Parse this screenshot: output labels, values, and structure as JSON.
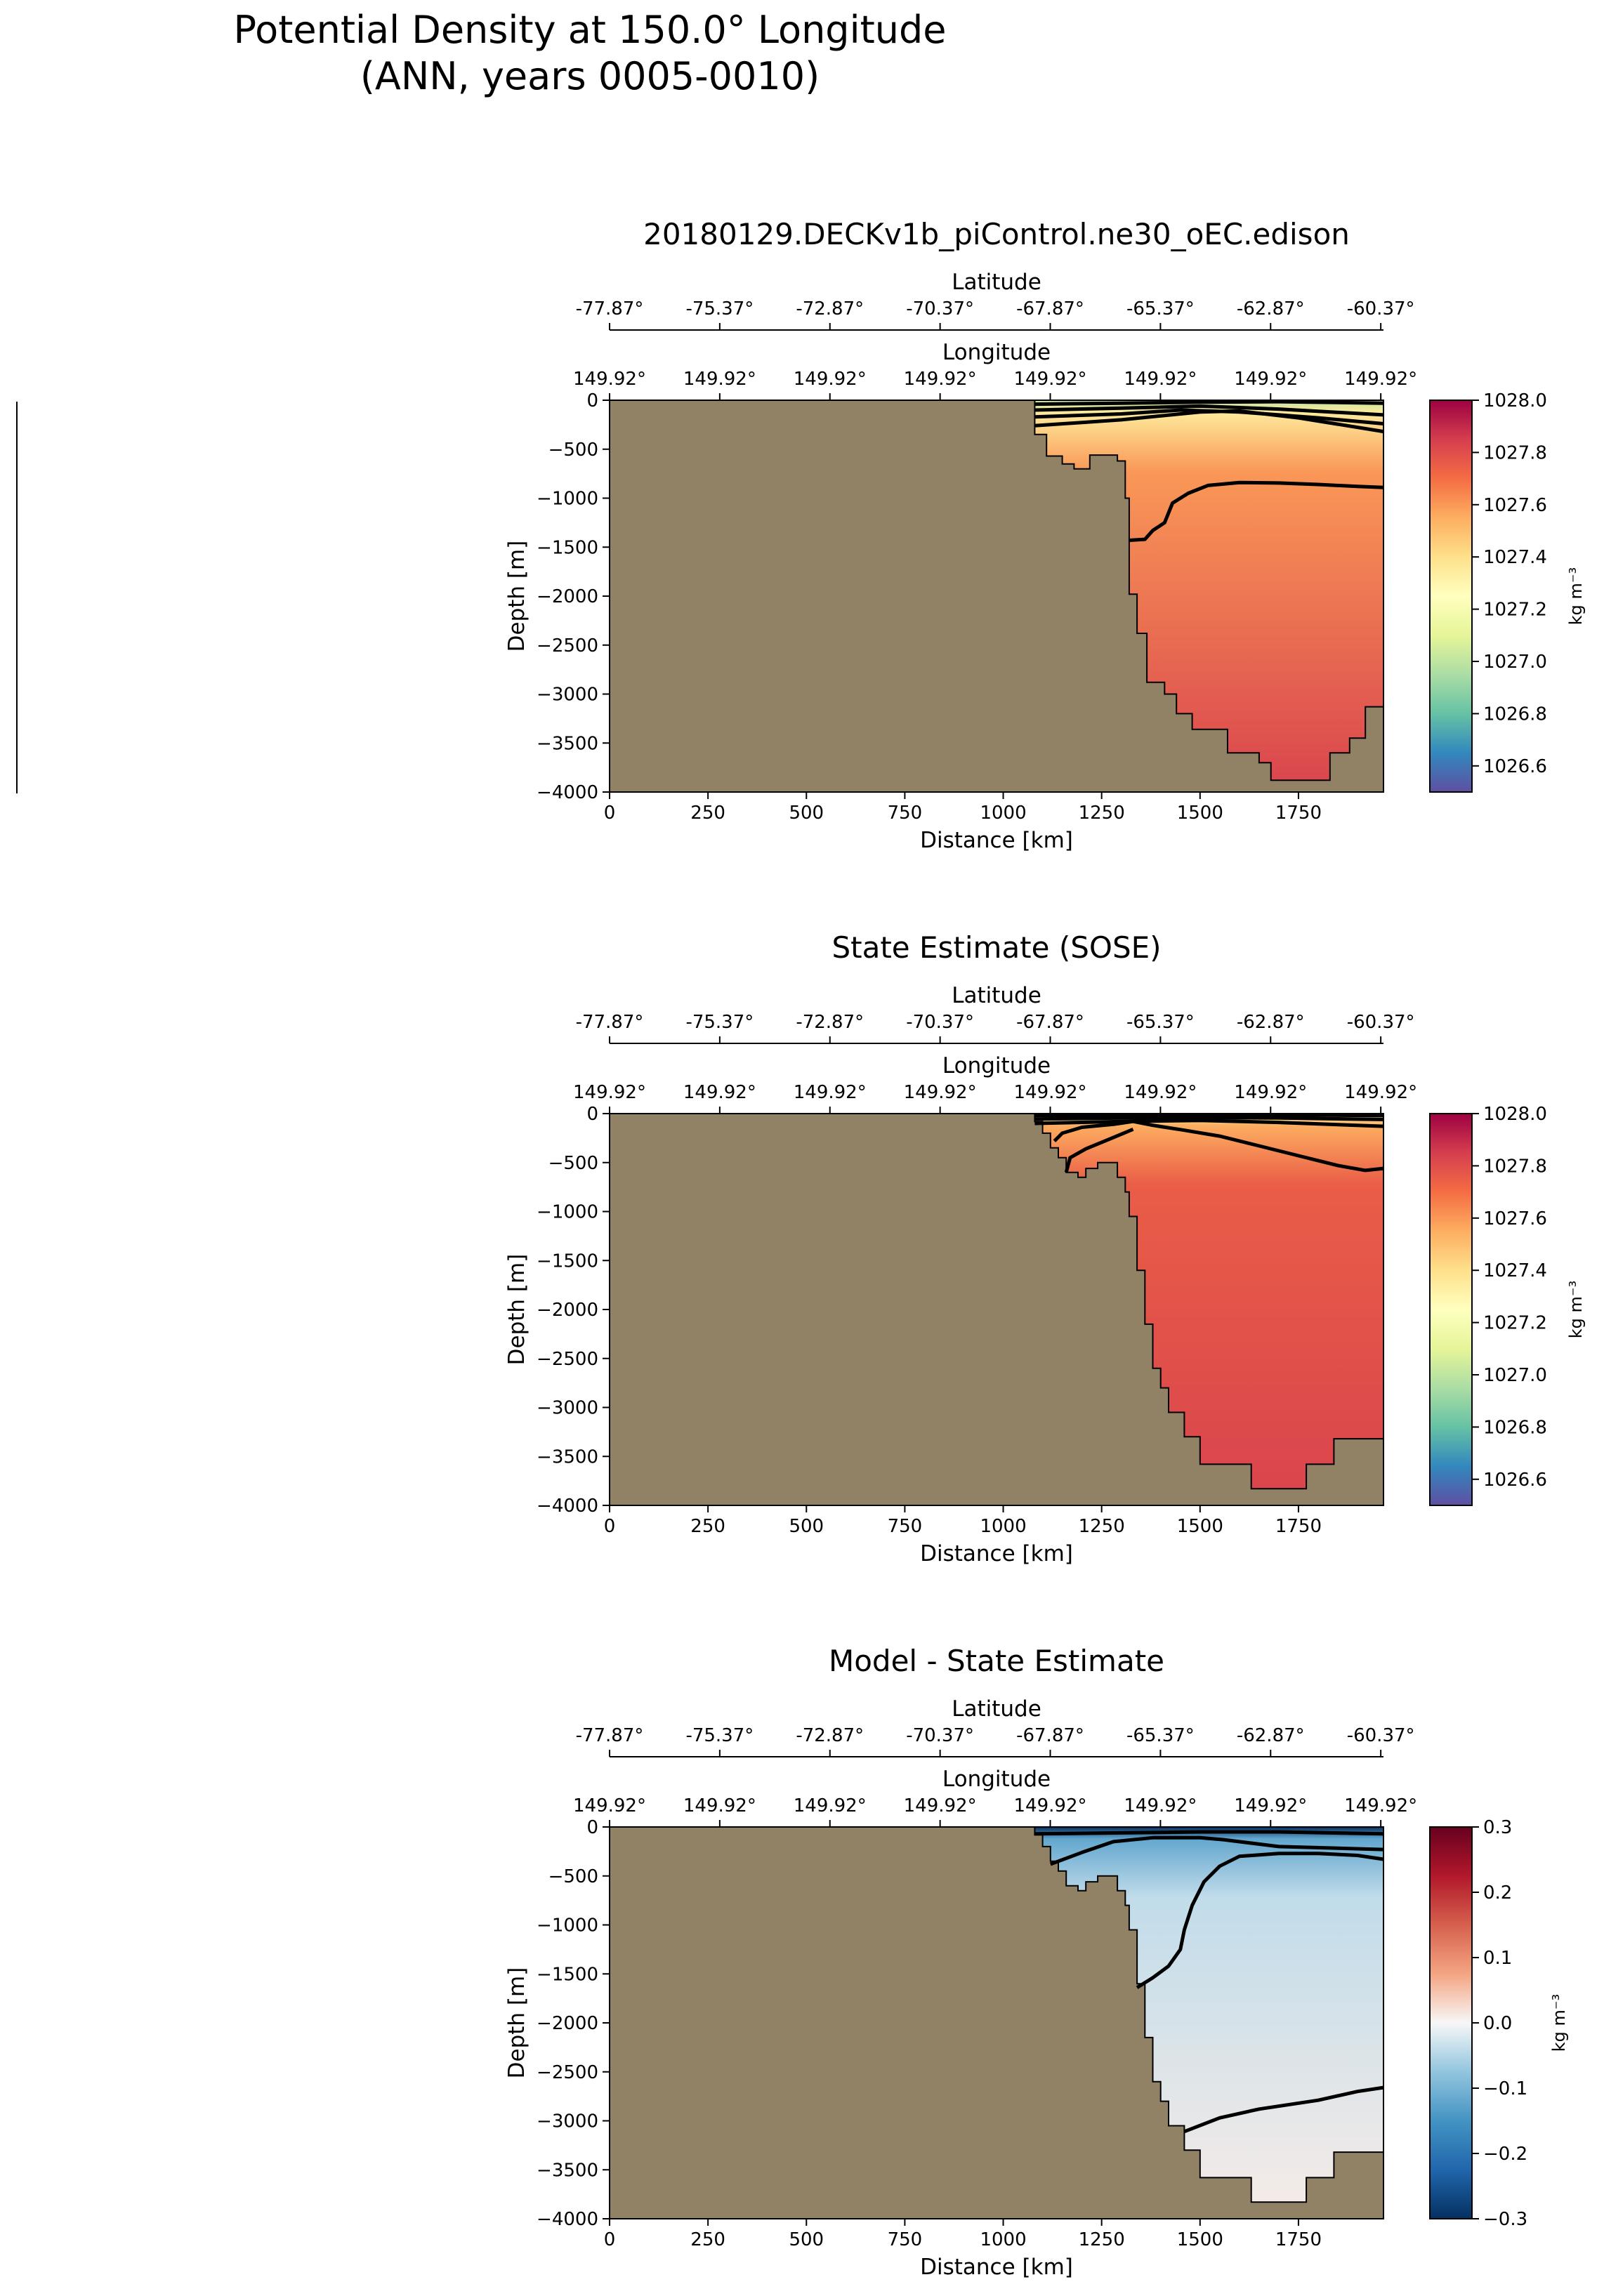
{
  "figure": {
    "suptitle_line1": "Potential Density at 150.0° Longitude",
    "suptitle_line2": "(ANN, years 0005-0010)"
  },
  "colors": {
    "land": "#918266",
    "contour": "#000000"
  },
  "chart_data": [
    {
      "type": "heatmap",
      "title": "20180129.DECKv1b_piControl.ne30_oEC.edison",
      "xlabel": "Distance [km]",
      "ylabel": "Depth [m]",
      "xlim": [
        0,
        1966
      ],
      "ylim": [
        -4000,
        0
      ],
      "xticks": [
        0,
        250,
        500,
        750,
        1000,
        1250,
        1500,
        1750
      ],
      "yticks": [
        0,
        -500,
        -1000,
        -1500,
        -2000,
        -2500,
        -3000,
        -3500,
        -4000
      ],
      "ytick_labels": [
        "0",
        "−500",
        "−1000",
        "−1500",
        "−2000",
        "−2500",
        "−3000",
        "−3500",
        "−4000"
      ],
      "lat_axis_label": "Latitude",
      "lat_ticks": [
        "-77.87°",
        "-75.37°",
        "-72.87°",
        "-70.37°",
        "-67.87°",
        "-65.37°",
        "-62.87°",
        "-60.37°"
      ],
      "lon_axis_label": "Longitude",
      "lon_ticks": [
        "149.92°",
        "149.92°",
        "149.92°",
        "149.92°",
        "149.92°",
        "149.92°",
        "149.92°",
        "149.92°"
      ],
      "colorbar": {
        "label": "kg m⁻³",
        "vmin": 1026.5,
        "vmax": 1028.0,
        "ticks": [
          1026.6,
          1026.8,
          1027.0,
          1027.2,
          1027.4,
          1027.6,
          1027.8,
          1028.0
        ],
        "tick_labels": [
          "1026.6",
          "1026.8",
          "1027.0",
          "1027.2",
          "1027.4",
          "1027.6",
          "1027.8",
          "1028.0"
        ],
        "cmap": "Spectral_r"
      },
      "field": {
        "surface_value": 1027.0,
        "shallow_value": 1027.35,
        "mid_value": 1027.6,
        "deep_value": 1027.83
      },
      "bathymetry": [
        [
          1080,
          0
        ],
        [
          1080,
          -350
        ],
        [
          1110,
          -350
        ],
        [
          1110,
          -570
        ],
        [
          1150,
          -570
        ],
        [
          1150,
          -650
        ],
        [
          1180,
          -650
        ],
        [
          1180,
          -700
        ],
        [
          1220,
          -700
        ],
        [
          1220,
          -560
        ],
        [
          1290,
          -560
        ],
        [
          1290,
          -620
        ],
        [
          1310,
          -620
        ],
        [
          1310,
          -1000
        ],
        [
          1320,
          -1000
        ],
        [
          1320,
          -1980
        ],
        [
          1340,
          -1980
        ],
        [
          1340,
          -2380
        ],
        [
          1365,
          -2380
        ],
        [
          1365,
          -2880
        ],
        [
          1410,
          -2880
        ],
        [
          1410,
          -3000
        ],
        [
          1440,
          -3000
        ],
        [
          1440,
          -3200
        ],
        [
          1480,
          -3200
        ],
        [
          1480,
          -3360
        ],
        [
          1570,
          -3360
        ],
        [
          1570,
          -3600
        ],
        [
          1650,
          -3600
        ],
        [
          1650,
          -3700
        ],
        [
          1680,
          -3700
        ],
        [
          1680,
          -3880
        ],
        [
          1830,
          -3880
        ],
        [
          1830,
          -3600
        ],
        [
          1880,
          -3600
        ],
        [
          1880,
          -3450
        ],
        [
          1920,
          -3450
        ],
        [
          1920,
          -3130
        ],
        [
          1966,
          -3130
        ]
      ],
      "contours": [
        [
          [
            1080,
            -40
          ],
          [
            1300,
            -30
          ],
          [
            1500,
            -20
          ],
          [
            1700,
            -15
          ],
          [
            1966,
            -30
          ]
        ],
        [
          [
            1080,
            -100
          ],
          [
            1300,
            -80
          ],
          [
            1500,
            -60
          ],
          [
            1700,
            -90
          ],
          [
            1966,
            -150
          ]
        ],
        [
          [
            1080,
            -170
          ],
          [
            1300,
            -140
          ],
          [
            1450,
            -100
          ],
          [
            1600,
            -120
          ],
          [
            1800,
            -180
          ],
          [
            1966,
            -240
          ]
        ],
        [
          [
            1080,
            -260
          ],
          [
            1300,
            -200
          ],
          [
            1500,
            -120
          ],
          [
            1600,
            -110
          ],
          [
            1750,
            -180
          ],
          [
            1966,
            -320
          ]
        ],
        [
          [
            1320,
            -1430
          ],
          [
            1360,
            -1420
          ],
          [
            1380,
            -1330
          ],
          [
            1410,
            -1250
          ],
          [
            1430,
            -1050
          ],
          [
            1470,
            -950
          ],
          [
            1520,
            -870
          ],
          [
            1600,
            -840
          ],
          [
            1700,
            -845
          ],
          [
            1800,
            -860
          ],
          [
            1900,
            -880
          ],
          [
            1966,
            -890
          ]
        ]
      ]
    },
    {
      "type": "heatmap",
      "title": "State Estimate (SOSE)",
      "xlabel": "Distance [km]",
      "ylabel": "Depth [m]",
      "xlim": [
        0,
        1966
      ],
      "ylim": [
        -4000,
        0
      ],
      "xticks": [
        0,
        250,
        500,
        750,
        1000,
        1250,
        1500,
        1750
      ],
      "yticks": [
        0,
        -500,
        -1000,
        -1500,
        -2000,
        -2500,
        -3000,
        -3500,
        -4000
      ],
      "ytick_labels": [
        "0",
        "−500",
        "−1000",
        "−1500",
        "−2000",
        "−2500",
        "−3000",
        "−3500",
        "−4000"
      ],
      "lat_axis_label": "Latitude",
      "lat_ticks": [
        "-77.87°",
        "-75.37°",
        "-72.87°",
        "-70.37°",
        "-67.87°",
        "-65.37°",
        "-62.87°",
        "-60.37°"
      ],
      "lon_axis_label": "Longitude",
      "lon_ticks": [
        "149.92°",
        "149.92°",
        "149.92°",
        "149.92°",
        "149.92°",
        "149.92°",
        "149.92°",
        "149.92°"
      ],
      "colorbar": {
        "label": "kg m⁻³",
        "vmin": 1026.5,
        "vmax": 1028.0,
        "ticks": [
          1026.6,
          1026.8,
          1027.0,
          1027.2,
          1027.4,
          1027.6,
          1027.8,
          1028.0
        ],
        "tick_labels": [
          "1026.6",
          "1026.8",
          "1027.0",
          "1027.2",
          "1027.4",
          "1027.6",
          "1027.8",
          "1028.0"
        ],
        "cmap": "Spectral_r"
      },
      "field": {
        "surface_value": 1027.3,
        "shallow_value": 1027.55,
        "mid_value": 1027.75,
        "deep_value": 1027.83
      },
      "bathymetry": [
        [
          1080,
          0
        ],
        [
          1080,
          -80
        ],
        [
          1100,
          -80
        ],
        [
          1100,
          -200
        ],
        [
          1120,
          -200
        ],
        [
          1120,
          -350
        ],
        [
          1140,
          -350
        ],
        [
          1140,
          -450
        ],
        [
          1160,
          -450
        ],
        [
          1160,
          -600
        ],
        [
          1190,
          -600
        ],
        [
          1190,
          -650
        ],
        [
          1210,
          -650
        ],
        [
          1210,
          -560
        ],
        [
          1240,
          -560
        ],
        [
          1240,
          -500
        ],
        [
          1290,
          -500
        ],
        [
          1290,
          -650
        ],
        [
          1310,
          -650
        ],
        [
          1310,
          -800
        ],
        [
          1320,
          -800
        ],
        [
          1320,
          -1050
        ],
        [
          1340,
          -1050
        ],
        [
          1340,
          -1600
        ],
        [
          1360,
          -1600
        ],
        [
          1360,
          -2150
        ],
        [
          1380,
          -2150
        ],
        [
          1380,
          -2600
        ],
        [
          1400,
          -2600
        ],
        [
          1400,
          -2800
        ],
        [
          1420,
          -2800
        ],
        [
          1420,
          -3050
        ],
        [
          1460,
          -3050
        ],
        [
          1460,
          -3300
        ],
        [
          1500,
          -3300
        ],
        [
          1500,
          -3580
        ],
        [
          1630,
          -3580
        ],
        [
          1630,
          -3830
        ],
        [
          1770,
          -3830
        ],
        [
          1770,
          -3580
        ],
        [
          1840,
          -3580
        ],
        [
          1840,
          -3320
        ],
        [
          1966,
          -3320
        ]
      ],
      "contours": [
        [
          [
            1080,
            -20
          ],
          [
            1300,
            -15
          ],
          [
            1500,
            -12
          ],
          [
            1700,
            -12
          ],
          [
            1966,
            -20
          ]
        ],
        [
          [
            1080,
            -55
          ],
          [
            1300,
            -45
          ],
          [
            1500,
            -40
          ],
          [
            1700,
            -45
          ],
          [
            1966,
            -60
          ]
        ],
        [
          [
            1080,
            -100
          ],
          [
            1300,
            -80
          ],
          [
            1500,
            -70
          ],
          [
            1700,
            -90
          ],
          [
            1966,
            -130
          ]
        ],
        [
          [
            1130,
            -280
          ],
          [
            1150,
            -200
          ],
          [
            1200,
            -140
          ],
          [
            1280,
            -110
          ],
          [
            1330,
            -80
          ],
          [
            1380,
            -120
          ],
          [
            1460,
            -170
          ],
          [
            1550,
            -230
          ],
          [
            1650,
            -330
          ],
          [
            1750,
            -430
          ],
          [
            1850,
            -530
          ],
          [
            1920,
            -580
          ],
          [
            1966,
            -560
          ]
        ],
        [
          [
            1160,
            -600
          ],
          [
            1170,
            -450
          ],
          [
            1210,
            -360
          ],
          [
            1270,
            -260
          ],
          [
            1330,
            -160
          ]
        ]
      ]
    },
    {
      "type": "heatmap",
      "title": "Model - State Estimate",
      "xlabel": "Distance [km]",
      "ylabel": "Depth [m]",
      "xlim": [
        0,
        1966
      ],
      "ylim": [
        -4000,
        0
      ],
      "xticks": [
        0,
        250,
        500,
        750,
        1000,
        1250,
        1500,
        1750
      ],
      "yticks": [
        0,
        -500,
        -1000,
        -1500,
        -2000,
        -2500,
        -3000,
        -3500,
        -4000
      ],
      "ytick_labels": [
        "0",
        "−500",
        "−1000",
        "−1500",
        "−2000",
        "−2500",
        "−3000",
        "−3500",
        "−4000"
      ],
      "lat_axis_label": "Latitude",
      "lat_ticks": [
        "-77.87°",
        "-75.37°",
        "-72.87°",
        "-70.37°",
        "-67.87°",
        "-65.37°",
        "-62.87°",
        "-60.37°"
      ],
      "lon_axis_label": "Longitude",
      "lon_ticks": [
        "149.92°",
        "149.92°",
        "149.92°",
        "149.92°",
        "149.92°",
        "149.92°",
        "149.92°",
        "149.92°"
      ],
      "colorbar": {
        "label": "kg m⁻³",
        "vmin": -0.3,
        "vmax": 0.3,
        "ticks": [
          -0.3,
          -0.2,
          -0.1,
          0.0,
          0.1,
          0.2,
          0.3
        ],
        "tick_labels": [
          "−0.3",
          "−0.2",
          "−0.1",
          "0.0",
          "0.1",
          "0.2",
          "0.3"
        ],
        "cmap": "RdBu_r"
      },
      "field": {
        "surface_value": -0.3,
        "shallow_value": -0.12,
        "mid_value": -0.04,
        "deep_value": 0.01
      },
      "bathymetry": [
        [
          1080,
          0
        ],
        [
          1080,
          -80
        ],
        [
          1100,
          -80
        ],
        [
          1100,
          -200
        ],
        [
          1120,
          -200
        ],
        [
          1120,
          -350
        ],
        [
          1140,
          -350
        ],
        [
          1140,
          -450
        ],
        [
          1160,
          -450
        ],
        [
          1160,
          -600
        ],
        [
          1190,
          -600
        ],
        [
          1190,
          -650
        ],
        [
          1210,
          -650
        ],
        [
          1210,
          -560
        ],
        [
          1240,
          -560
        ],
        [
          1240,
          -500
        ],
        [
          1290,
          -500
        ],
        [
          1290,
          -650
        ],
        [
          1310,
          -650
        ],
        [
          1310,
          -800
        ],
        [
          1320,
          -800
        ],
        [
          1320,
          -1050
        ],
        [
          1340,
          -1050
        ],
        [
          1340,
          -1600
        ],
        [
          1360,
          -1600
        ],
        [
          1360,
          -2150
        ],
        [
          1380,
          -2150
        ],
        [
          1380,
          -2600
        ],
        [
          1400,
          -2600
        ],
        [
          1400,
          -2800
        ],
        [
          1420,
          -2800
        ],
        [
          1420,
          -3050
        ],
        [
          1460,
          -3050
        ],
        [
          1460,
          -3300
        ],
        [
          1500,
          -3300
        ],
        [
          1500,
          -3580
        ],
        [
          1630,
          -3580
        ],
        [
          1630,
          -3830
        ],
        [
          1770,
          -3830
        ],
        [
          1770,
          -3580
        ],
        [
          1840,
          -3580
        ],
        [
          1840,
          -3320
        ],
        [
          1966,
          -3320
        ]
      ],
      "contours": [
        [
          [
            1080,
            -70
          ],
          [
            1300,
            -60
          ],
          [
            1500,
            -50
          ],
          [
            1700,
            -50
          ],
          [
            1966,
            -70
          ]
        ],
        [
          [
            1120,
            -380
          ],
          [
            1200,
            -260
          ],
          [
            1280,
            -150
          ],
          [
            1380,
            -110
          ],
          [
            1500,
            -110
          ],
          [
            1560,
            -130
          ],
          [
            1700,
            -200
          ],
          [
            1966,
            -230
          ]
        ],
        [
          [
            1340,
            -1640
          ],
          [
            1380,
            -1540
          ],
          [
            1420,
            -1420
          ],
          [
            1450,
            -1250
          ],
          [
            1460,
            -1050
          ],
          [
            1480,
            -800
          ],
          [
            1510,
            -560
          ],
          [
            1550,
            -400
          ],
          [
            1600,
            -300
          ],
          [
            1700,
            -270
          ],
          [
            1800,
            -270
          ],
          [
            1900,
            -290
          ],
          [
            1966,
            -330
          ]
        ],
        [
          [
            1460,
            -3110
          ],
          [
            1550,
            -2970
          ],
          [
            1650,
            -2880
          ],
          [
            1800,
            -2790
          ],
          [
            1900,
            -2700
          ],
          [
            1966,
            -2660
          ]
        ]
      ]
    }
  ]
}
